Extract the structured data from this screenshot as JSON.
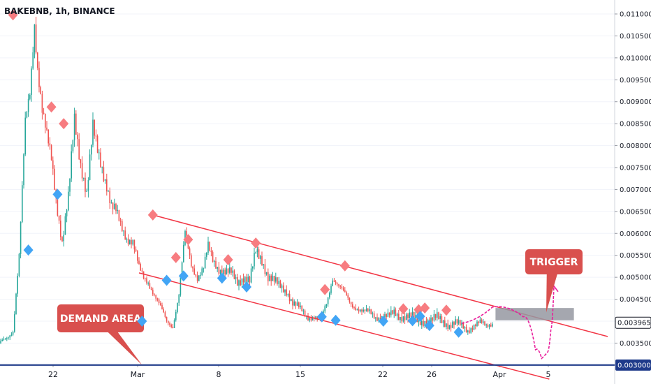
{
  "header": {
    "symbol_title": "BAKEBNB, 1h, BINANCE"
  },
  "colors": {
    "up": "#26a69a",
    "down": "#ef5350",
    "channel": "#f23645",
    "level": "#1e3a8a",
    "high_marker": "#f77c80",
    "low_marker": "#42a5f5",
    "projection": "#e91e9b",
    "callout": "#d9504e",
    "trigger_zone": "#9598a1",
    "last_tag": "#131722"
  },
  "chart_data": {
    "type": "candlestick",
    "title": "BAKEBNB, 1h, BINANCE",
    "x_ticks": [
      "22",
      "Mar",
      "8",
      "15",
      "22",
      "26",
      "Apr",
      "5"
    ],
    "y_ticks": [
      "0.011000",
      "0.010500",
      "0.010000",
      "0.009500",
      "0.009000",
      "0.008500",
      "0.008000",
      "0.007500",
      "0.007000",
      "0.006500",
      "0.006000",
      "0.005500",
      "0.005000",
      "0.004500",
      "0.004000",
      "0.003500",
      "0.003000"
    ],
    "ylim": [
      0.0026,
      0.01135
    ],
    "last_price": "0.003965",
    "level_price": "0.003000",
    "level_value": 0.003,
    "series": [
      {
        "name": "close",
        "x": [
          0,
          4,
          8,
          12,
          16,
          19,
          22,
          24,
          27,
          30,
          33,
          36,
          40,
          44,
          48,
          52,
          56,
          60,
          63,
          66,
          69,
          72,
          75,
          78,
          82,
          86,
          88,
          90,
          93,
          96,
          100,
          104,
          108,
          112,
          116,
          120,
          124,
          128,
          132,
          135,
          138,
          142,
          146,
          150,
          154,
          158,
          162,
          166,
          170,
          174,
          178,
          182,
          186,
          190,
          194,
          197,
          200,
          204,
          208,
          212,
          216,
          220,
          224,
          228,
          232,
          236,
          240,
          244,
          248,
          252,
          256,
          260,
          264,
          268,
          272,
          276,
          280,
          284,
          288,
          292,
          296,
          300,
          304,
          308,
          312,
          316,
          320
        ],
        "y": [
          0.0035,
          0.0036,
          0.0038,
          0.0055,
          0.0085,
          0.0092,
          0.0108,
          0.0098,
          0.0088,
          0.0082,
          0.0077,
          0.0068,
          0.0058,
          0.0068,
          0.0086,
          0.0076,
          0.0069,
          0.0084,
          0.0079,
          0.0075,
          0.0071,
          0.0066,
          0.0065,
          0.0062,
          0.0059,
          0.0058,
          0.0055,
          0.0052,
          0.005,
          0.0049,
          0.0046,
          0.0043,
          0.004,
          0.0039,
          0.0046,
          0.006,
          0.0053,
          0.005,
          0.0052,
          0.0057,
          0.0054,
          0.0052,
          0.0051,
          0.0051,
          0.0049,
          0.005,
          0.0049,
          0.0056,
          0.0054,
          0.005,
          0.0049,
          0.0048,
          0.0047,
          0.0044,
          0.0043,
          0.0042,
          0.0041,
          0.0041,
          0.004,
          0.0044,
          0.005,
          0.0048,
          0.0046,
          0.0044,
          0.0043,
          0.0042,
          0.0042,
          0.0041,
          0.0041,
          0.0041,
          0.0042,
          0.0041,
          0.0041,
          0.0041,
          0.004,
          0.004,
          0.004,
          0.0041,
          0.004,
          0.0039,
          0.00395,
          0.0039,
          0.0038,
          0.0039,
          0.00395,
          0.0039,
          0.00397
        ]
      }
    ],
    "high_markers": [
      [
        8,
        0.01098
      ],
      [
        33,
        0.00888
      ],
      [
        41,
        0.0085
      ],
      [
        99,
        0.00642
      ],
      [
        114,
        0.00545
      ],
      [
        122,
        0.00586
      ],
      [
        148,
        0.0054
      ],
      [
        166,
        0.00578
      ],
      [
        211,
        0.00472
      ],
      [
        224,
        0.00526
      ],
      [
        262,
        0.00428
      ],
      [
        272,
        0.00426
      ],
      [
        276,
        0.0043
      ],
      [
        290,
        0.00425
      ]
    ],
    "low_markers": [
      [
        18,
        0.00562
      ],
      [
        37,
        0.00689
      ],
      [
        92,
        0.004
      ],
      [
        108,
        0.00493
      ],
      [
        119,
        0.00503
      ],
      [
        144,
        0.00498
      ],
      [
        160,
        0.00478
      ],
      [
        209,
        0.0041
      ],
      [
        218,
        0.00402
      ],
      [
        249,
        0.004
      ],
      [
        268,
        0.00401
      ],
      [
        273,
        0.00411
      ],
      [
        279,
        0.0039
      ],
      [
        298,
        0.00375
      ]
    ],
    "channel_upper": [
      [
        99,
        0.00642
      ],
      [
        395,
        0.00365
      ]
    ],
    "channel_lower": [
      [
        90,
        0.0051
      ],
      [
        357,
        0.00268
      ]
    ],
    "projection": [
      [
        300,
        0.00395
      ],
      [
        320,
        0.00432
      ],
      [
        340,
        0.0041
      ],
      [
        348,
        0.00335
      ],
      [
        352,
        0.00315
      ],
      [
        356,
        0.0033
      ],
      [
        358,
        0.0038
      ],
      [
        360,
        0.0048
      ]
    ],
    "trigger_zone": {
      "x": [
        322,
        373
      ],
      "y": [
        0.00402,
        0.0043
      ]
    },
    "annotations": [
      {
        "label": "DEMAND AREA",
        "anchor_x": 92,
        "anchor_y": 0.003
      },
      {
        "label": "TRIGGER",
        "anchor_x": 355,
        "anchor_y": 0.0042
      }
    ]
  }
}
